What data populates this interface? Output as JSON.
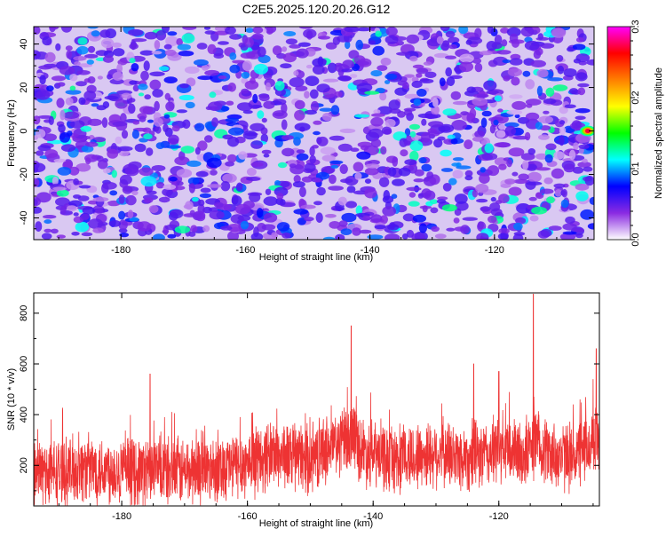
{
  "chart_data": [
    {
      "type": "heatmap",
      "title": "C2E5.2025.120.20.26.G12",
      "xlabel": "Height of straight line (km)",
      "ylabel": "Frequency (Hz)",
      "xlim": [
        -194,
        -104
      ],
      "ylim": [
        -50,
        48
      ],
      "x_ticks": [
        "-180",
        "-160",
        "-140",
        "-120"
      ],
      "y_ticks": [
        "-40",
        "-20",
        "0",
        "20",
        "40"
      ],
      "grid": false,
      "colorbar": {
        "label": "Normalized spectral amplitude",
        "range": [
          0.0,
          0.3
        ],
        "ticks": [
          "0.0",
          "0.1",
          "0.2",
          "0.3"
        ],
        "colormap": [
          "#ffffff",
          "#8a2be2",
          "#0000ff",
          "#00ffff",
          "#00ff00",
          "#ffff00",
          "#ff7f00",
          "#ff0000",
          "#ff00ff"
        ]
      },
      "notable_peak": {
        "x": -105,
        "frequency": 0,
        "value": 0.3
      }
    },
    {
      "type": "line",
      "title": "",
      "xlabel": "Height of straight line (km)",
      "ylabel": "SNR (10 * v/v)",
      "xlim": [
        -194,
        -104
      ],
      "ylim": [
        40,
        880
      ],
      "x_ticks": [
        "-180",
        "-160",
        "-140",
        "-120"
      ],
      "y_ticks": [
        "200",
        "400",
        "600",
        "800"
      ],
      "grid": false,
      "color": "#ee3333",
      "series": [
        {
          "x": [
            -194,
            -190,
            -186,
            -182,
            -178,
            -176,
            -170,
            -166,
            -162,
            -160,
            -158,
            -156,
            -154,
            -150,
            -148,
            -146,
            -144,
            -143,
            -142,
            -140,
            -138,
            -136,
            -134,
            -132,
            -130,
            -128,
            -126,
            -122,
            -120,
            -118,
            -116,
            -114,
            -112,
            -110,
            -108,
            -106,
            -105
          ],
          "values": [
            180,
            170,
            190,
            185,
            175,
            180,
            175,
            190,
            200,
            210,
            220,
            250,
            240,
            220,
            260,
            280,
            300,
            330,
            260,
            240,
            230,
            220,
            230,
            240,
            250,
            240,
            230,
            240,
            260,
            250,
            240,
            290,
            250,
            230,
            240,
            260,
            300
          ]
        }
      ],
      "peaks": [
        {
          "x": -114.5,
          "value": 875
        },
        {
          "x": -143.5,
          "value": 750
        },
        {
          "x": -124,
          "value": 600
        },
        {
          "x": -120,
          "value": 570
        },
        {
          "x": -175.5,
          "value": 560
        },
        {
          "x": -104.5,
          "value": 660
        }
      ]
    }
  ]
}
